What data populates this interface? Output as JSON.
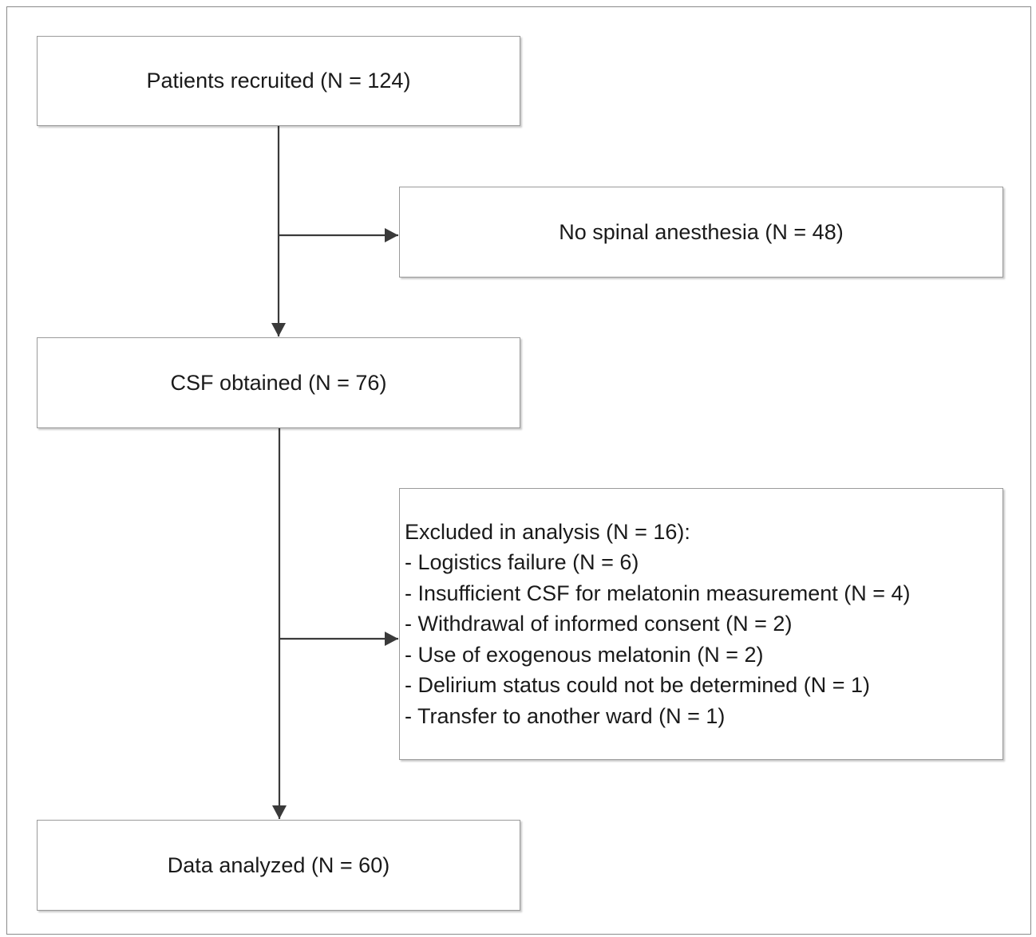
{
  "flowchart": {
    "recruited": "Patients recruited (N = 124)",
    "no_spinal": "No spinal anesthesia (N = 48)",
    "csf_obtained": "CSF obtained (N = 76)",
    "excluded": {
      "heading": "Excluded in analysis (N = 16):",
      "items": [
        "- Logistics failure (N = 6)",
        "- Insufficient CSF for melatonin measurement (N = 4)",
        "- Withdrawal of informed consent (N = 2)",
        "- Use of exogenous melatonin (N = 2)",
        "- Delirium status could not be determined (N = 1)",
        "- Transfer to another ward (N = 1)"
      ]
    },
    "analyzed": "Data analyzed (N = 60)"
  },
  "colors": {
    "connector": "#3a3a3a",
    "box_border": "#9a9a9a",
    "frame_border": "#8a8a8a"
  }
}
